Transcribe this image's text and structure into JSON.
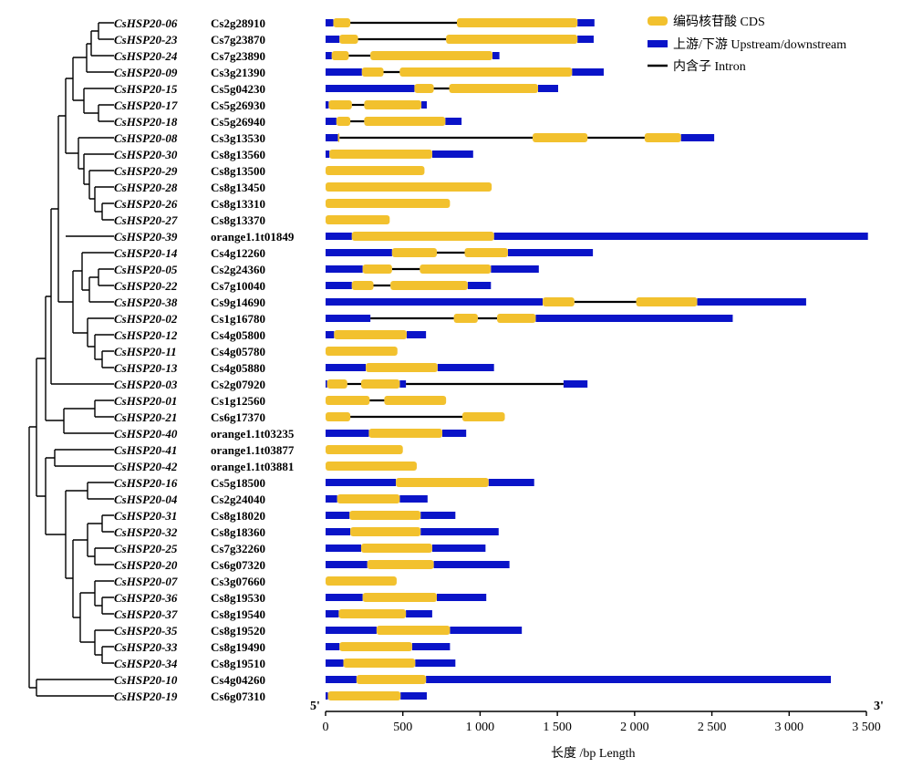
{
  "figure": {
    "legend": {
      "items": [
        {
          "label": "编码核苷酸 CDS",
          "color": "#F2C12E",
          "icon": "cds-swatch-icon"
        },
        {
          "label": "上游/下游 Upstream/downstream",
          "color": "#0A14C8",
          "icon": "utr-swatch-icon"
        },
        {
          "label": "内含子 Intron",
          "color": "#000000",
          "icon": "intron-line-icon"
        }
      ]
    },
    "end_labels": {
      "five_prime": "5'",
      "three_prime": "3'"
    },
    "axis": {
      "title": "长度 /bp Length",
      "ticks": [
        0,
        500,
        1000,
        1500,
        2000,
        2500,
        3000,
        3500
      ],
      "tick_labels": [
        "0",
        "500",
        "1 000",
        "1 500",
        "2 000",
        "2 500",
        "3 000",
        "3 500"
      ],
      "range": [
        0,
        3500
      ]
    },
    "colors": {
      "cds": "#F2C12E",
      "utr": "#0A14C8",
      "intron": "#000000",
      "tree": "#000000"
    }
  },
  "chart_data": {
    "type": "gene-structure",
    "genes": [
      {
        "name": "CsHSP20-06",
        "locus": "Cs2g28910",
        "total": 1740,
        "utr": [
          [
            0,
            50
          ],
          [
            1630,
            1740
          ]
        ],
        "cds": [
          [
            50,
            160
          ],
          [
            850,
            1630
          ]
        ],
        "intron": [
          [
            160,
            850
          ]
        ]
      },
      {
        "name": "CsHSP20-23",
        "locus": "Cs7g23870",
        "total": 1735,
        "utr": [
          [
            0,
            90
          ],
          [
            1630,
            1735
          ]
        ],
        "cds": [
          [
            90,
            210
          ],
          [
            780,
            1630
          ]
        ],
        "intron": [
          [
            210,
            780
          ]
        ]
      },
      {
        "name": "CsHSP20-24",
        "locus": "Cs7g23890",
        "total": 1125,
        "utr": [
          [
            0,
            40
          ],
          [
            1080,
            1125
          ]
        ],
        "cds": [
          [
            40,
            150
          ],
          [
            290,
            1080
          ]
        ],
        "intron": [
          [
            150,
            290
          ]
        ]
      },
      {
        "name": "CsHSP20-09",
        "locus": "Cs3g21390",
        "total": 1800,
        "utr": [
          [
            0,
            235
          ],
          [
            1595,
            1800
          ]
        ],
        "cds": [
          [
            235,
            375
          ],
          [
            480,
            1595
          ]
        ],
        "intron": [
          [
            375,
            480
          ]
        ]
      },
      {
        "name": "CsHSP20-15",
        "locus": "Cs5g04230",
        "total": 1505,
        "utr": [
          [
            0,
            575
          ],
          [
            1375,
            1505
          ]
        ],
        "cds": [
          [
            575,
            700
          ],
          [
            800,
            1375
          ]
        ],
        "intron": [
          [
            700,
            800
          ]
        ]
      },
      {
        "name": "CsHSP20-17",
        "locus": "Cs5g26930",
        "total": 655,
        "utr": [
          [
            0,
            20
          ],
          [
            620,
            655
          ]
        ],
        "cds": [
          [
            20,
            170
          ],
          [
            250,
            620
          ]
        ],
        "intron": [
          [
            170,
            250
          ]
        ]
      },
      {
        "name": "CsHSP20-18",
        "locus": "Cs5g26940",
        "total": 880,
        "utr": [
          [
            0,
            70
          ],
          [
            775,
            880
          ]
        ],
        "cds": [
          [
            70,
            160
          ],
          [
            250,
            775
          ]
        ],
        "intron": [
          [
            160,
            250
          ]
        ]
      },
      {
        "name": "CsHSP20-08",
        "locus": "Cs3g13530",
        "total": 2515,
        "utr": [
          [
            0,
            80
          ],
          [
            2300,
            2515
          ]
        ],
        "cds": [
          [
            80,
            90
          ],
          [
            1340,
            1695
          ],
          [
            2065,
            2300
          ]
        ],
        "intron": [
          [
            90,
            1340
          ],
          [
            1695,
            2065
          ]
        ]
      },
      {
        "name": "CsHSP20-30",
        "locus": "Cs8g13560",
        "total": 955,
        "utr": [
          [
            0,
            25
          ],
          [
            690,
            955
          ]
        ],
        "cds": [
          [
            25,
            690
          ]
        ],
        "intron": []
      },
      {
        "name": "CsHSP20-29",
        "locus": "Cs8g13500",
        "total": 640,
        "utr": [],
        "cds": [
          [
            0,
            640
          ]
        ],
        "intron": []
      },
      {
        "name": "CsHSP20-28",
        "locus": "Cs8g13450",
        "total": 1075,
        "utr": [],
        "cds": [
          [
            0,
            1075
          ]
        ],
        "intron": []
      },
      {
        "name": "CsHSP20-26",
        "locus": "Cs8g13310",
        "total": 805,
        "utr": [],
        "cds": [
          [
            0,
            805
          ]
        ],
        "intron": []
      },
      {
        "name": "CsHSP20-27",
        "locus": "Cs8g13370",
        "total": 415,
        "utr": [],
        "cds": [
          [
            0,
            415
          ]
        ],
        "intron": []
      },
      {
        "name": "CsHSP20-39",
        "locus": "orange1.1t01849",
        "total": 3510,
        "utr": [
          [
            0,
            170
          ],
          [
            1090,
            3510
          ]
        ],
        "cds": [
          [
            170,
            1090
          ]
        ],
        "intron": []
      },
      {
        "name": "CsHSP20-14",
        "locus": "Cs4g12260",
        "total": 1730,
        "utr": [
          [
            0,
            430
          ],
          [
            1180,
            1730
          ]
        ],
        "cds": [
          [
            430,
            720
          ],
          [
            900,
            1180
          ]
        ],
        "intron": [
          [
            720,
            900
          ]
        ]
      },
      {
        "name": "CsHSP20-05",
        "locus": "Cs2g24360",
        "total": 1380,
        "utr": [
          [
            0,
            240
          ],
          [
            1070,
            1380
          ]
        ],
        "cds": [
          [
            240,
            430
          ],
          [
            610,
            1070
          ]
        ],
        "intron": [
          [
            430,
            610
          ]
        ]
      },
      {
        "name": "CsHSP20-22",
        "locus": "Cs7g10040",
        "total": 1070,
        "utr": [
          [
            0,
            170
          ],
          [
            920,
            1070
          ]
        ],
        "cds": [
          [
            170,
            310
          ],
          [
            420,
            920
          ]
        ],
        "intron": [
          [
            310,
            420
          ]
        ]
      },
      {
        "name": "CsHSP20-38",
        "locus": "Cs9g14690",
        "total": 3110,
        "utr": [
          [
            0,
            1405
          ],
          [
            2405,
            3110
          ]
        ],
        "cds": [
          [
            1405,
            1610
          ],
          [
            2010,
            2405
          ]
        ],
        "intron": [
          [
            1610,
            2010
          ]
        ]
      },
      {
        "name": "CsHSP20-02",
        "locus": "Cs1g16780",
        "total": 2635,
        "utr": [
          [
            0,
            290
          ],
          [
            1360,
            2635
          ]
        ],
        "cds": [
          [
            830,
            985
          ],
          [
            1110,
            1360
          ]
        ],
        "intron": [
          [
            290,
            830
          ],
          [
            985,
            1110
          ]
        ]
      },
      {
        "name": "CsHSP20-12",
        "locus": "Cs4g05800",
        "total": 650,
        "utr": [
          [
            0,
            55
          ],
          [
            525,
            650
          ]
        ],
        "cds": [
          [
            55,
            525
          ]
        ],
        "intron": []
      },
      {
        "name": "CsHSP20-11",
        "locus": "Cs4g05780",
        "total": 465,
        "utr": [],
        "cds": [
          [
            0,
            465
          ]
        ],
        "intron": []
      },
      {
        "name": "CsHSP20-13",
        "locus": "Cs4g05880",
        "total": 1090,
        "utr": [
          [
            0,
            260
          ],
          [
            725,
            1090
          ]
        ],
        "cds": [
          [
            260,
            725
          ]
        ],
        "intron": []
      },
      {
        "name": "CsHSP20-03",
        "locus": "Cs2g07920",
        "total": 1695,
        "utr": [
          [
            0,
            10
          ],
          [
            480,
            520
          ],
          [
            1540,
            1695
          ]
        ],
        "cds": [
          [
            10,
            140
          ],
          [
            230,
            480
          ]
        ],
        "intron": [
          [
            140,
            230
          ],
          [
            520,
            1540
          ]
        ]
      },
      {
        "name": "CsHSP20-01",
        "locus": "Cs1g12560",
        "total": 780,
        "utr": [],
        "cds": [
          [
            0,
            285
          ],
          [
            380,
            780
          ]
        ],
        "intron": [
          [
            285,
            380
          ]
        ]
      },
      {
        "name": "CsHSP20-21",
        "locus": "Cs6g17370",
        "total": 1160,
        "utr": [],
        "cds": [
          [
            0,
            160
          ],
          [
            885,
            1160
          ]
        ],
        "intron": [
          [
            160,
            885
          ]
        ]
      },
      {
        "name": "CsHSP20-40",
        "locus": "orange1.1t03235",
        "total": 910,
        "utr": [
          [
            0,
            280
          ],
          [
            755,
            910
          ]
        ],
        "cds": [
          [
            280,
            755
          ]
        ],
        "intron": []
      },
      {
        "name": "CsHSP20-41",
        "locus": "orange1.1t03877",
        "total": 500,
        "utr": [],
        "cds": [
          [
            0,
            500
          ]
        ],
        "intron": []
      },
      {
        "name": "CsHSP20-42",
        "locus": "orange1.1t03881",
        "total": 590,
        "utr": [],
        "cds": [
          [
            0,
            590
          ]
        ],
        "intron": []
      },
      {
        "name": "CsHSP20-16",
        "locus": "Cs5g18500",
        "total": 1350,
        "utr": [
          [
            0,
            455
          ],
          [
            1055,
            1350
          ]
        ],
        "cds": [
          [
            455,
            1055
          ]
        ],
        "intron": []
      },
      {
        "name": "CsHSP20-04",
        "locus": "Cs2g24040",
        "total": 660,
        "utr": [
          [
            0,
            75
          ],
          [
            480,
            660
          ]
        ],
        "cds": [
          [
            75,
            480
          ]
        ],
        "intron": []
      },
      {
        "name": "CsHSP20-31",
        "locus": "Cs8g18020",
        "total": 840,
        "utr": [
          [
            0,
            155
          ],
          [
            615,
            840
          ]
        ],
        "cds": [
          [
            155,
            615
          ]
        ],
        "intron": []
      },
      {
        "name": "CsHSP20-32",
        "locus": "Cs8g18360",
        "total": 1120,
        "utr": [
          [
            0,
            160
          ],
          [
            615,
            1120
          ]
        ],
        "cds": [
          [
            160,
            615
          ]
        ],
        "intron": []
      },
      {
        "name": "CsHSP20-25",
        "locus": "Cs7g32260",
        "total": 1035,
        "utr": [
          [
            0,
            230
          ],
          [
            690,
            1035
          ]
        ],
        "cds": [
          [
            230,
            690
          ]
        ],
        "intron": []
      },
      {
        "name": "CsHSP20-20",
        "locus": "Cs6g07320",
        "total": 1190,
        "utr": [
          [
            0,
            270
          ],
          [
            700,
            1190
          ]
        ],
        "cds": [
          [
            270,
            700
          ]
        ],
        "intron": []
      },
      {
        "name": "CsHSP20-07",
        "locus": "Cs3g07660",
        "total": 460,
        "utr": [],
        "cds": [
          [
            0,
            460
          ]
        ],
        "intron": []
      },
      {
        "name": "CsHSP20-36",
        "locus": "Cs8g19530",
        "total": 1040,
        "utr": [
          [
            0,
            240
          ],
          [
            720,
            1040
          ]
        ],
        "cds": [
          [
            240,
            720
          ]
        ],
        "intron": []
      },
      {
        "name": "CsHSP20-37",
        "locus": "Cs8g19540",
        "total": 690,
        "utr": [
          [
            0,
            85
          ],
          [
            520,
            690
          ]
        ],
        "cds": [
          [
            85,
            520
          ]
        ],
        "intron": []
      },
      {
        "name": "CsHSP20-35",
        "locus": "Cs8g19520",
        "total": 1270,
        "utr": [
          [
            0,
            330
          ],
          [
            805,
            1270
          ]
        ],
        "cds": [
          [
            330,
            805
          ]
        ],
        "intron": []
      },
      {
        "name": "CsHSP20-33",
        "locus": "Cs8g19490",
        "total": 805,
        "utr": [
          [
            0,
            90
          ],
          [
            560,
            805
          ]
        ],
        "cds": [
          [
            90,
            560
          ]
        ],
        "intron": []
      },
      {
        "name": "CsHSP20-34",
        "locus": "Cs8g19510",
        "total": 840,
        "utr": [
          [
            0,
            115
          ],
          [
            580,
            840
          ]
        ],
        "cds": [
          [
            115,
            580
          ]
        ],
        "intron": []
      },
      {
        "name": "CsHSP20-10",
        "locus": "Cs4g04260",
        "total": 3270,
        "utr": [
          [
            0,
            200
          ],
          [
            650,
            3270
          ]
        ],
        "cds": [
          [
            200,
            650
          ]
        ],
        "intron": []
      },
      {
        "name": "CsHSP20-19",
        "locus": "Cs6g07310",
        "total": 655,
        "utr": [
          [
            0,
            15
          ],
          [
            485,
            655
          ]
        ],
        "cds": [
          [
            15,
            485
          ]
        ],
        "intron": []
      }
    ]
  }
}
